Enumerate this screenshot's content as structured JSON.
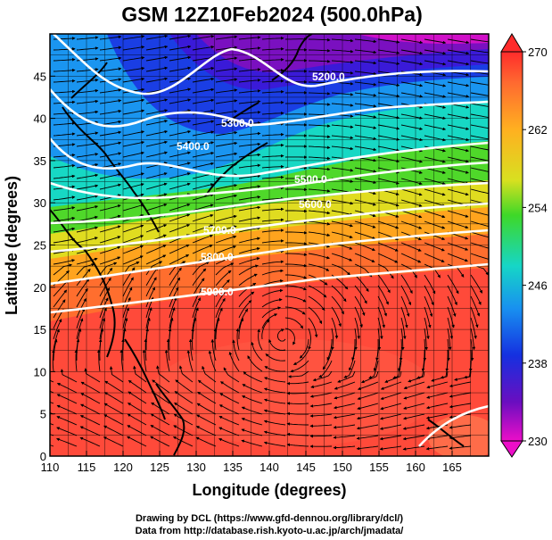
{
  "title": "GSM 12Z10Feb2024 (500.0hPa)",
  "xlabel": "Longitude (degrees)",
  "ylabel": "Latitude  (degrees)",
  "credits": {
    "line1": "Drawing by DCL (https://www.gfd-dennou.org/library/dcl/)",
    "line2": "Data from http://database.rish.kyoto-u.ac.jp/arch/jmadata/"
  },
  "colorbar": {
    "ticks": [
      "270",
      "262",
      "254",
      "246",
      "238",
      "230"
    ],
    "range": [
      230,
      270
    ]
  },
  "chart_data": {
    "type": "heatmap",
    "xlim": [
      110,
      170
    ],
    "ylim": [
      0,
      50
    ],
    "xticks": [
      "110",
      "115",
      "120",
      "125",
      "130",
      "135",
      "140",
      "145",
      "150",
      "155",
      "160",
      "165"
    ],
    "yticks": [
      "0",
      "5",
      "10",
      "15",
      "20",
      "25",
      "30",
      "35",
      "40",
      "45"
    ],
    "grid": true,
    "contour_labels": [
      "5200.0",
      "5300.0",
      "5400.0",
      "5500.0",
      "5600.0",
      "5700.0",
      "5800.0",
      "5900.0"
    ],
    "colormap_colors": [
      "#ff3333",
      "#ff9a20",
      "#ffe020",
      "#5edb2a",
      "#17d6c8",
      "#1f8ff0",
      "#1c2ee0",
      "#7a10c0",
      "#ee10c8"
    ]
  }
}
